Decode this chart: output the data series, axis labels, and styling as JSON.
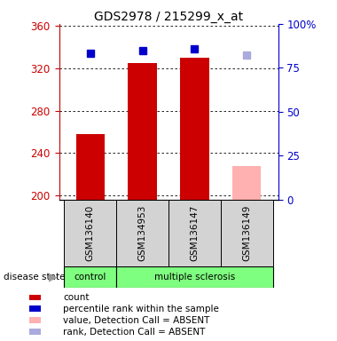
{
  "title": "GDS2978 / 215299_x_at",
  "samples": [
    "GSM136140",
    "GSM134953",
    "GSM136147",
    "GSM136149"
  ],
  "bar_values": [
    258,
    325,
    330,
    null
  ],
  "bar_color": "#cc0000",
  "absent_bar_values": [
    null,
    null,
    null,
    228
  ],
  "absent_bar_color": "#ffb0b0",
  "rank_values_pct": [
    83,
    85,
    86,
    null
  ],
  "absent_rank_pct": [
    null,
    null,
    null,
    82
  ],
  "rank_color": "#0000cc",
  "absent_rank_color": "#aaaadd",
  "ymin": 196,
  "ymax": 362,
  "yticks": [
    200,
    240,
    280,
    320,
    360
  ],
  "right_yticks": [
    0,
    25,
    50,
    75,
    100
  ],
  "bar_width": 0.55,
  "marker_size": 6,
  "left_tick_color": "#cc0000",
  "right_tick_color": "#0000cc",
  "legend_items": [
    {
      "label": "count",
      "color": "#cc0000"
    },
    {
      "label": "percentile rank within the sample",
      "color": "#0000cc"
    },
    {
      "label": "value, Detection Call = ABSENT",
      "color": "#ffb0b0"
    },
    {
      "label": "rank, Detection Call = ABSENT",
      "color": "#aaaadd"
    }
  ]
}
